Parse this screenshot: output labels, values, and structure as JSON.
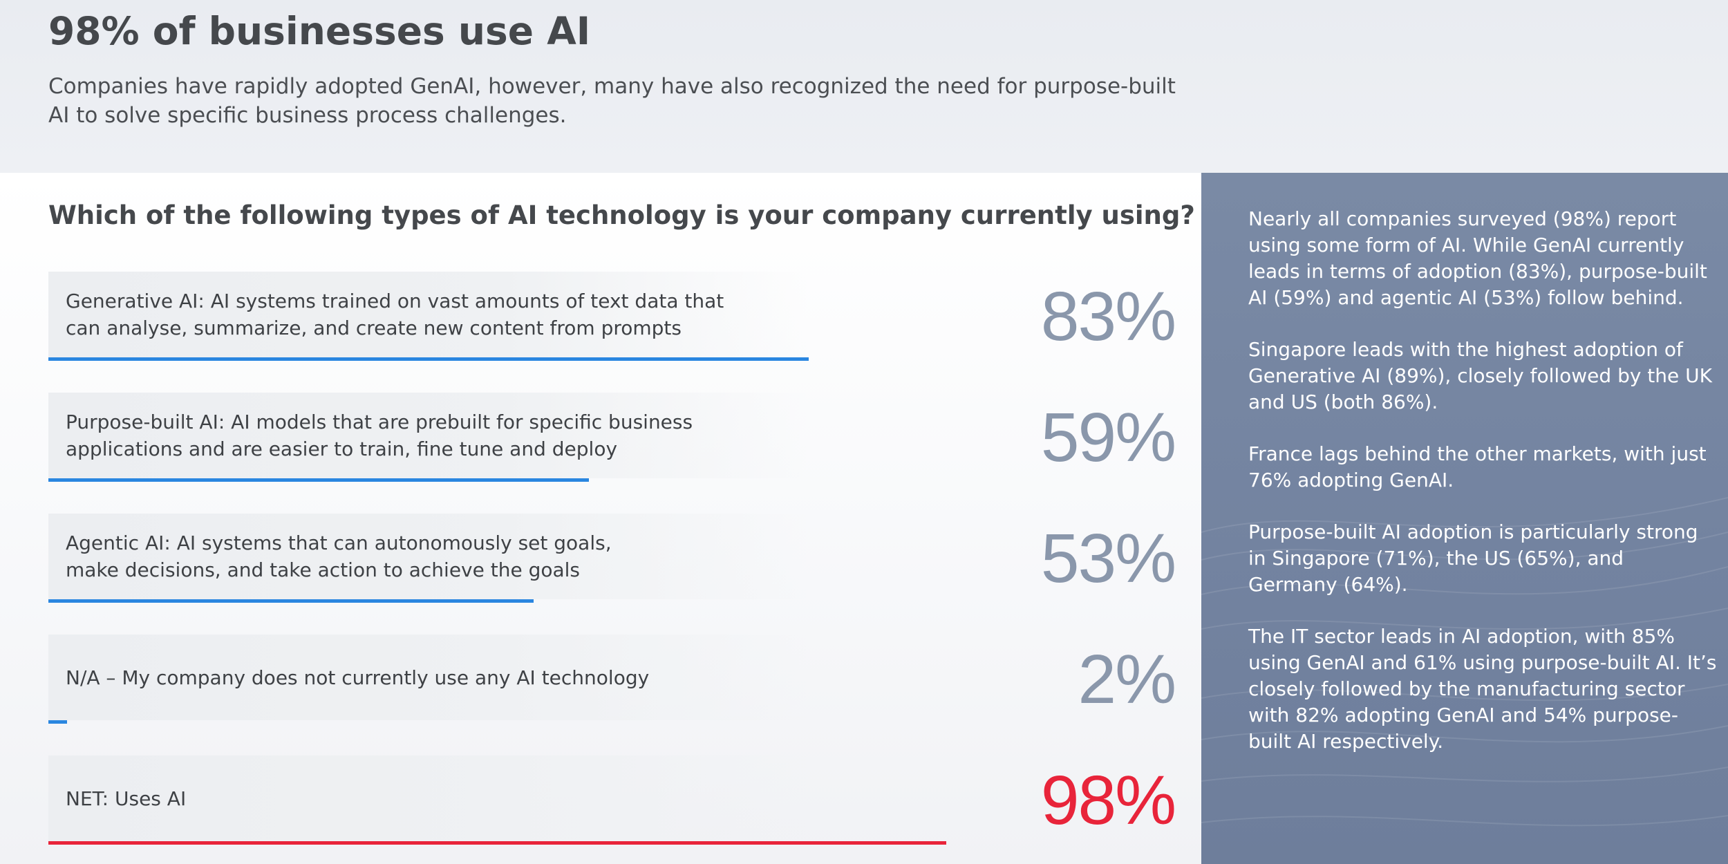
{
  "header": {
    "title": "98% of businesses use AI",
    "subtitle": "Companies have rapidly adopted GenAI, however, many have also recognized the need for purpose-built AI to solve specific business process challenges."
  },
  "chart_data": {
    "type": "bar",
    "title": "Which of the following types of AI technology is your company currently using?",
    "categories": [
      "Generative AI: AI systems trained on vast amounts of text data that can analyse, summarize, and create new content from prompts",
      "Purpose-built AI: AI models that are prebuilt for specific business applications and are easier to train, fine tune and deploy",
      "Agentic AI: AI systems that can autonomously set goals, make decisions, and take action to achieve the goals",
      "N/A – My company does not currently use any AI technology",
      "NET: Uses AI"
    ],
    "label_lines": [
      [
        "Generative AI: AI systems trained on vast amounts of text data that",
        "can analyse, summarize, and create new content from prompts"
      ],
      [
        "Purpose-built AI: AI models that are prebuilt for specific business",
        "applications and are easier to train, fine tune and deploy"
      ],
      [
        "Agentic AI: AI systems that can autonomously set goals,",
        "make decisions, and take action to achieve the goals"
      ],
      [
        "N/A – My company does not currently use any AI technology"
      ],
      [
        "NET: Uses AI"
      ]
    ],
    "values": [
      83,
      59,
      53,
      2,
      98
    ],
    "value_labels": [
      "83%",
      "59%",
      "53%",
      "2%",
      "98%"
    ],
    "unit": "%",
    "xlim": [
      0,
      100
    ],
    "orientation": "horizontal",
    "grid": false,
    "colors": {
      "bar": "#2a86e0",
      "highlight": "#e8243a",
      "value_text": "#8a97ab"
    },
    "highlight_index": 4
  },
  "panel": {
    "paragraphs": [
      "Nearly all companies surveyed (98%) report using some form of AI. While GenAI currently leads in terms of adoption (83%), purpose-built AI (59%) and agentic AI (53%) follow behind.",
      "Singapore leads with the highest adoption of Generative AI (89%), closely followed by the UK and US (both 86%).",
      "France lags behind the other markets, with just 76% adopting GenAI.",
      "Purpose-built AI adoption is particularly strong in Singapore (71%), the US (65%), and Germany (64%).",
      "The IT sector leads in AI adoption, with 85% using GenAI and 61% using purpose-built AI. It’s closely followed by the manufacturing sector with 82% adopting GenAI and 54% purpose-built AI respectively."
    ]
  }
}
